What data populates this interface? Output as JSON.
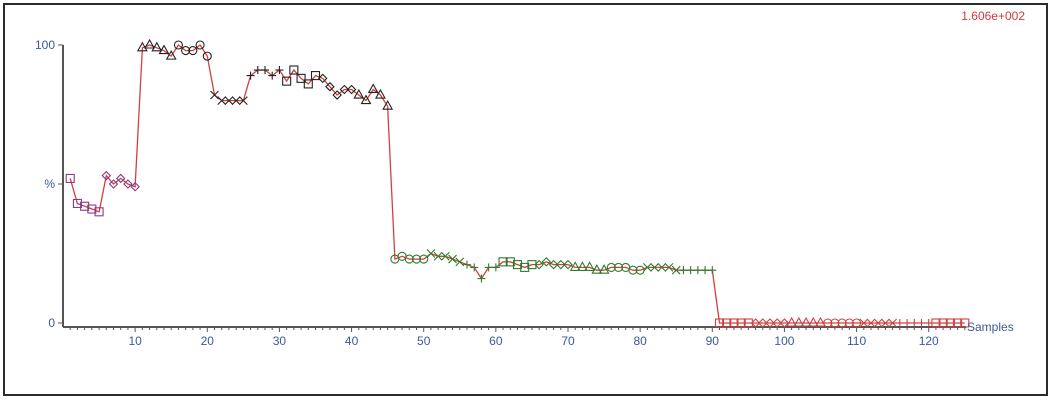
{
  "chart_data": {
    "type": "line",
    "title": "",
    "corner_label": "1.606e+002",
    "xlabel": "Samples",
    "ylabel": "%",
    "xlim": [
      0,
      126
    ],
    "ylim": [
      0,
      100
    ],
    "x_ticks": [
      10,
      20,
      30,
      40,
      50,
      60,
      70,
      80,
      90,
      100,
      110,
      120
    ],
    "y_ticks": [
      {
        "value": 100,
        "label": "100"
      },
      {
        "value": 50,
        "label": "%"
      },
      {
        "value": 0,
        "label": "0"
      }
    ],
    "grid": false,
    "legend": "none",
    "line_color": "#d04040",
    "marker_groups": [
      {
        "color": "#8a3a8a",
        "marker": "square",
        "points": [
          [
            1,
            52
          ],
          [
            2,
            43
          ],
          [
            3,
            42
          ],
          [
            4,
            41
          ],
          [
            5,
            40
          ]
        ]
      },
      {
        "color": "#8a3a8a",
        "marker": "diamond",
        "points": [
          [
            6,
            53
          ],
          [
            7,
            50
          ],
          [
            8,
            52
          ],
          [
            9,
            50
          ],
          [
            10,
            49
          ]
        ]
      },
      {
        "color": "#222222",
        "marker": "triangle",
        "points": [
          [
            11,
            99
          ],
          [
            12,
            100
          ],
          [
            13,
            99
          ],
          [
            14,
            98
          ],
          [
            15,
            96
          ]
        ]
      },
      {
        "color": "#222222",
        "marker": "circle",
        "points": [
          [
            16,
            100
          ],
          [
            17,
            98
          ],
          [
            18,
            98
          ],
          [
            19,
            100
          ],
          [
            20,
            96
          ]
        ]
      },
      {
        "color": "#222222",
        "marker": "x",
        "points": [
          [
            21,
            82
          ],
          [
            22,
            80
          ],
          [
            23,
            80
          ],
          [
            24,
            80
          ],
          [
            25,
            80
          ]
        ]
      },
      {
        "color": "#222222",
        "marker": "plus",
        "points": [
          [
            26,
            89
          ],
          [
            27,
            91
          ],
          [
            28,
            91
          ],
          [
            29,
            89
          ],
          [
            30,
            91
          ]
        ]
      },
      {
        "color": "#222222",
        "marker": "square",
        "points": [
          [
            31,
            87
          ],
          [
            32,
            91
          ],
          [
            33,
            88
          ],
          [
            34,
            86
          ],
          [
            35,
            89
          ]
        ]
      },
      {
        "color": "#222222",
        "marker": "diamond",
        "points": [
          [
            36,
            88
          ],
          [
            37,
            85
          ],
          [
            38,
            82
          ],
          [
            39,
            84
          ],
          [
            40,
            84
          ]
        ]
      },
      {
        "color": "#222222",
        "marker": "triangle",
        "points": [
          [
            41,
            82
          ],
          [
            42,
            80
          ],
          [
            43,
            84
          ],
          [
            44,
            82
          ],
          [
            45,
            78
          ]
        ]
      },
      {
        "color": "#2f7a2f",
        "marker": "circle",
        "points": [
          [
            46,
            23
          ],
          [
            47,
            24
          ],
          [
            48,
            23
          ],
          [
            49,
            23
          ],
          [
            50,
            23
          ]
        ]
      },
      {
        "color": "#2f7a2f",
        "marker": "x",
        "points": [
          [
            51,
            25
          ],
          [
            52,
            24
          ],
          [
            53,
            24
          ],
          [
            54,
            23
          ],
          [
            55,
            22
          ]
        ]
      },
      {
        "color": "#2f7a2f",
        "marker": "plus",
        "points": [
          [
            56,
            21
          ],
          [
            57,
            20
          ],
          [
            58,
            16
          ],
          [
            59,
            20
          ],
          [
            60,
            20
          ]
        ]
      },
      {
        "color": "#2f7a2f",
        "marker": "square",
        "points": [
          [
            61,
            22
          ],
          [
            62,
            22
          ],
          [
            63,
            21
          ],
          [
            64,
            20
          ],
          [
            65,
            21
          ]
        ]
      },
      {
        "color": "#2f7a2f",
        "marker": "diamond",
        "points": [
          [
            66,
            21
          ],
          [
            67,
            22
          ],
          [
            68,
            21
          ],
          [
            69,
            21
          ],
          [
            70,
            21
          ]
        ]
      },
      {
        "color": "#2f7a2f",
        "marker": "triangle",
        "points": [
          [
            71,
            20
          ],
          [
            72,
            20
          ],
          [
            73,
            20
          ],
          [
            74,
            19
          ],
          [
            75,
            19
          ]
        ]
      },
      {
        "color": "#2f7a2f",
        "marker": "circle",
        "points": [
          [
            76,
            20
          ],
          [
            77,
            20
          ],
          [
            78,
            20
          ],
          [
            79,
            19
          ],
          [
            80,
            19
          ]
        ]
      },
      {
        "color": "#2f7a2f",
        "marker": "x",
        "points": [
          [
            81,
            20
          ],
          [
            82,
            20
          ],
          [
            83,
            20
          ],
          [
            84,
            20
          ],
          [
            85,
            19
          ]
        ]
      },
      {
        "color": "#2f7a2f",
        "marker": "plus",
        "points": [
          [
            86,
            19
          ],
          [
            87,
            19
          ],
          [
            88,
            19
          ],
          [
            89,
            19
          ],
          [
            90,
            19
          ]
        ]
      },
      {
        "color": "#d04040",
        "marker": "square",
        "points": [
          [
            91,
            0
          ],
          [
            92,
            0
          ],
          [
            93,
            0
          ],
          [
            94,
            0
          ],
          [
            95,
            0
          ]
        ]
      },
      {
        "color": "#d04040",
        "marker": "diamond",
        "points": [
          [
            96,
            0
          ],
          [
            97,
            0
          ],
          [
            98,
            0
          ],
          [
            99,
            0
          ],
          [
            100,
            0
          ]
        ]
      },
      {
        "color": "#d04040",
        "marker": "triangle",
        "points": [
          [
            101,
            0
          ],
          [
            102,
            0
          ],
          [
            103,
            0
          ],
          [
            104,
            0
          ],
          [
            105,
            0
          ]
        ]
      },
      {
        "color": "#d04040",
        "marker": "circle",
        "points": [
          [
            106,
            0
          ],
          [
            107,
            0
          ],
          [
            108,
            0
          ],
          [
            109,
            0
          ],
          [
            110,
            0
          ]
        ]
      },
      {
        "color": "#d04040",
        "marker": "x",
        "points": [
          [
            111,
            0
          ],
          [
            112,
            0
          ],
          [
            113,
            0
          ],
          [
            114,
            0
          ],
          [
            115,
            0
          ]
        ]
      },
      {
        "color": "#d04040",
        "marker": "plus",
        "points": [
          [
            116,
            0
          ],
          [
            117,
            0
          ],
          [
            118,
            0
          ],
          [
            119,
            0
          ],
          [
            120,
            0
          ]
        ]
      },
      {
        "color": "#d04040",
        "marker": "square",
        "points": [
          [
            121,
            0
          ],
          [
            122,
            0
          ],
          [
            123,
            0
          ],
          [
            124,
            0
          ],
          [
            125,
            0
          ]
        ]
      }
    ]
  }
}
